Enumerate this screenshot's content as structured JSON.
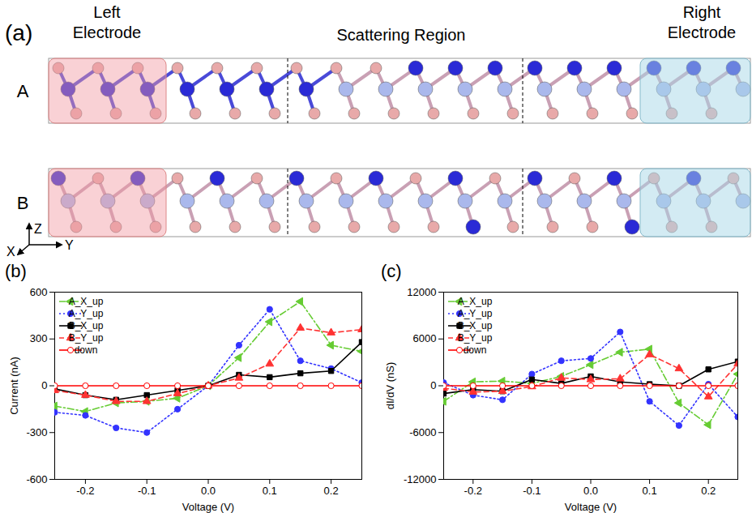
{
  "diagram": {
    "panel": "(a)",
    "labels": {
      "left": "Left Electrode",
      "center": "Scattering Region",
      "right": "Right Electrode"
    },
    "rows": [
      "A",
      "B"
    ],
    "axes": {
      "z": "Z",
      "x": "X",
      "y": "Y"
    }
  },
  "chart_data": [
    {
      "type": "line",
      "panel": "(b)",
      "xlabel": "Voltage (V)",
      "ylabel": "Current (nA)",
      "x": [
        -0.25,
        -0.2,
        -0.15,
        -0.1,
        -0.05,
        0,
        0.05,
        0.1,
        0.15,
        0.2,
        0.25
      ],
      "xlim": [
        -0.25,
        0.25
      ],
      "xticks": [
        -0.2,
        -0.1,
        {
          "value": 0,
          "label": "0.0"
        },
        0.1,
        0.2
      ],
      "ylim": [
        -600,
        600
      ],
      "yticks": [
        -600,
        -300,
        0,
        300,
        600
      ],
      "legend": "top-left",
      "series": [
        {
          "name": "A_X_up",
          "color": "#66cc33",
          "marker": "triangle-left",
          "line_style": "dashdot",
          "values": [
            -130,
            -165,
            -110,
            -100,
            -80,
            0,
            180,
            410,
            540,
            260,
            220
          ]
        },
        {
          "name": "A_Y_up",
          "color": "#3333ff",
          "marker": "circle",
          "line_style": "dotted",
          "values": [
            -170,
            -190,
            -270,
            -300,
            -150,
            0,
            260,
            490,
            160,
            110,
            20
          ]
        },
        {
          "name": "B_X_up",
          "color": "#000000",
          "marker": "square",
          "line_style": "solid",
          "values": [
            -20,
            -60,
            -90,
            -60,
            -30,
            0,
            70,
            55,
            80,
            95,
            280
          ]
        },
        {
          "name": "B_Y_up",
          "color": "#ff3333",
          "marker": "triangle",
          "line_style": "dashed",
          "values": [
            -30,
            -60,
            -100,
            -100,
            -50,
            0,
            50,
            140,
            370,
            340,
            360
          ]
        },
        {
          "name": "down",
          "color": "#ff0000",
          "marker": "circle-open",
          "line_style": "solid",
          "values": [
            0,
            0,
            0,
            0,
            0,
            0,
            0,
            0,
            0,
            0,
            0
          ]
        }
      ]
    },
    {
      "type": "line",
      "panel": "(c)",
      "xlabel": "Voltage (V)",
      "ylabel": "dI/dV (nS)",
      "x": [
        -0.25,
        -0.2,
        -0.15,
        -0.1,
        -0.05,
        0,
        0.05,
        0.1,
        0.15,
        0.2,
        0.25
      ],
      "xlim": [
        -0.25,
        0.25
      ],
      "xticks": [
        -0.2,
        -0.1,
        {
          "value": 0,
          "label": "0.0"
        },
        0.1,
        0.2
      ],
      "ylim": [
        -12000,
        12000
      ],
      "yticks": [
        -12000,
        -6000,
        0,
        6000,
        12000
      ],
      "legend": "top-left",
      "series": [
        {
          "name": "A_X_up",
          "color": "#66cc33",
          "marker": "triangle-left",
          "line_style": "dashdot",
          "values": [
            -2000,
            500,
            600,
            300,
            1200,
            2700,
            4300,
            4700,
            -2200,
            -5000,
            1500
          ]
        },
        {
          "name": "A_Y_up",
          "color": "#3333ff",
          "marker": "circle",
          "line_style": "dotted",
          "values": [
            400,
            -1200,
            -1800,
            1500,
            3200,
            3500,
            6900,
            -2000,
            -5100,
            200,
            -4000
          ]
        },
        {
          "name": "B_X_up",
          "color": "#000000",
          "marker": "square",
          "line_style": "solid",
          "values": [
            -1000,
            -500,
            -700,
            800,
            300,
            1200,
            500,
            200,
            0,
            2100,
            3100
          ]
        },
        {
          "name": "B_Y_up",
          "color": "#ff3333",
          "marker": "triangle",
          "line_style": "dashed",
          "values": [
            -300,
            -800,
            -700,
            -100,
            1000,
            800,
            900,
            4000,
            2200,
            -1400,
            2800
          ]
        },
        {
          "name": "down",
          "color": "#ff0000",
          "marker": "circle-open",
          "line_style": "solid",
          "values": [
            0,
            0,
            0,
            0,
            0,
            0,
            0,
            0,
            0,
            0,
            0
          ]
        }
      ]
    }
  ]
}
